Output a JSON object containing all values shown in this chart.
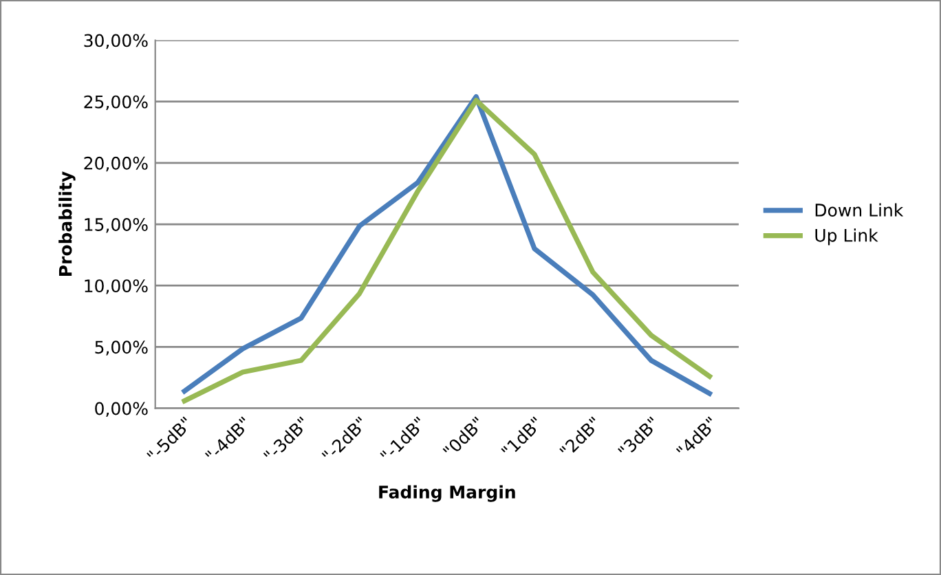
{
  "chart_data": {
    "type": "line",
    "xlabel": "Fading Margin",
    "ylabel": "Probability",
    "categories": [
      "\"-5dB\"",
      "\"-4dB\"",
      "\"-3dB\"",
      "\"-2dB\"",
      "\"-1dB\"",
      "\"0dB\"",
      "\"1dB\"",
      "\"2dB\"",
      "\"3dB\"",
      "\"4dB\""
    ],
    "series": [
      {
        "name": "Down Link",
        "color": "#4a7ebb",
        "values": [
          1.4,
          4.85,
          7.35,
          14.85,
          18.4,
          25.4,
          13.0,
          9.25,
          3.9,
          1.2
        ]
      },
      {
        "name": "Up Link",
        "color": "#98b954",
        "values": [
          0.6,
          2.95,
          3.9,
          9.35,
          17.7,
          25.1,
          20.7,
          11.1,
          5.95,
          2.6
        ]
      }
    ],
    "ylim": [
      0,
      30
    ],
    "yticks": [
      {
        "value": 0,
        "label": "0,00%"
      },
      {
        "value": 5,
        "label": "5,00%"
      },
      {
        "value": 10,
        "label": "10,00%"
      },
      {
        "value": 15,
        "label": "15,00%"
      },
      {
        "value": 20,
        "label": "20,00%"
      },
      {
        "value": 25,
        "label": "25,00%"
      },
      {
        "value": 30,
        "label": "30,00%"
      }
    ],
    "grid": "y",
    "legend": "right",
    "marker": "none",
    "line_style": "solid"
  }
}
